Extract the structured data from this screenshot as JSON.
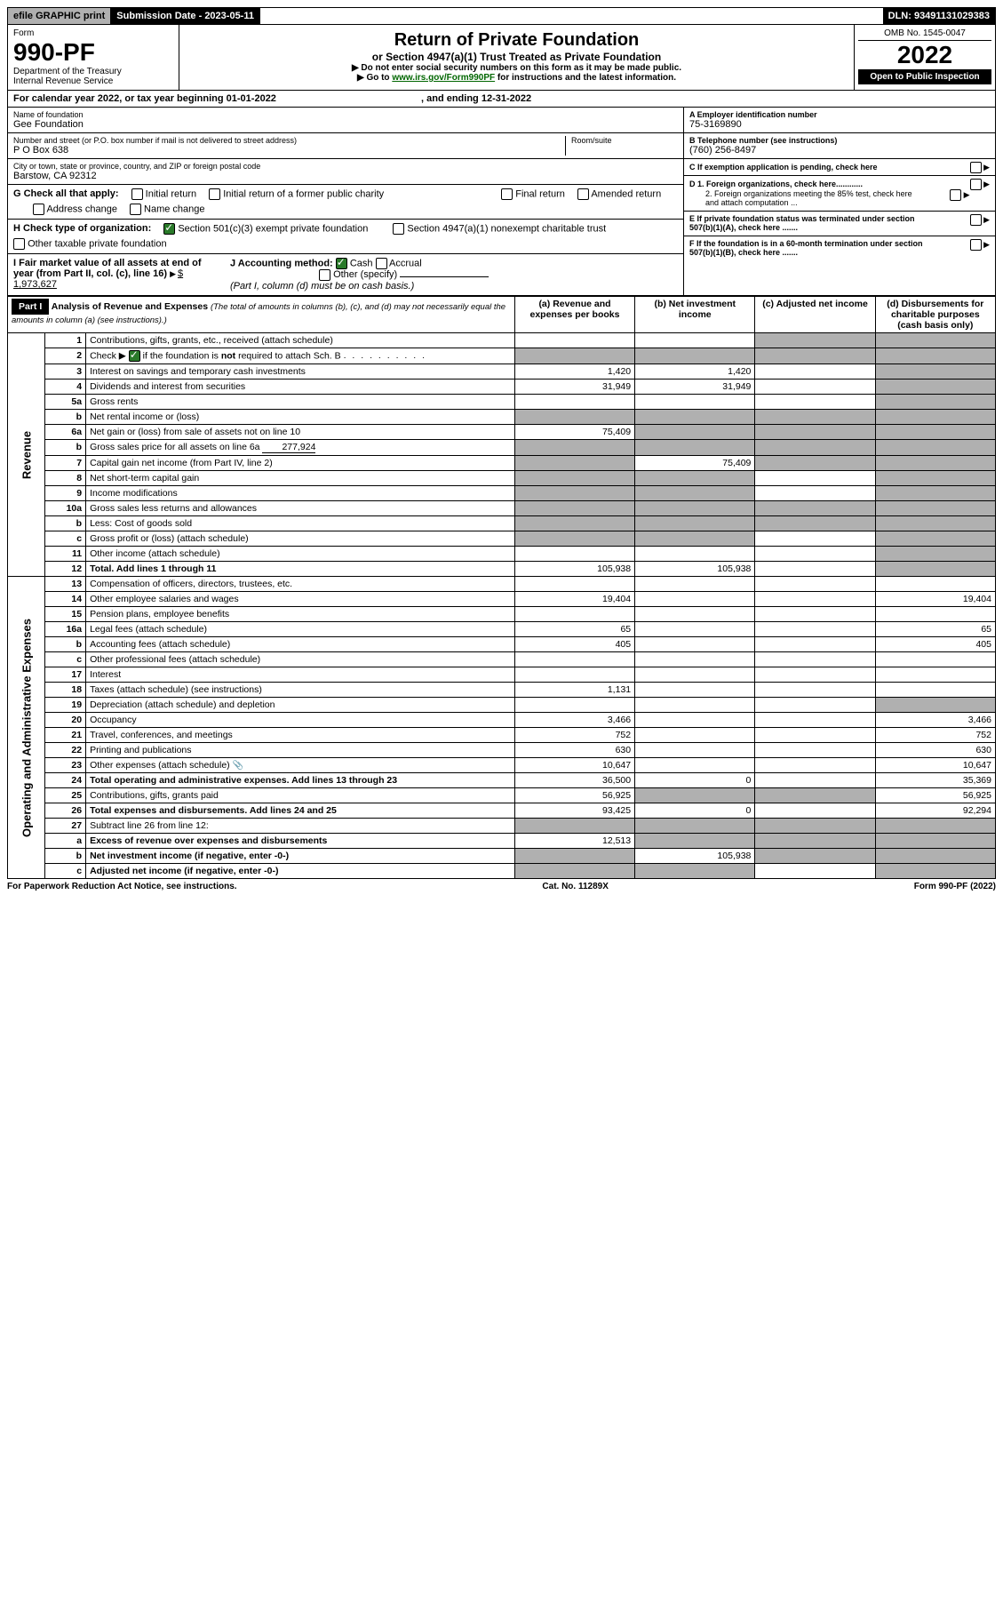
{
  "topbar": {
    "efile": "efile GRAPHIC print",
    "subdate_label": "Submission Date - 2023-05-11",
    "dln": "DLN: 93491131029383"
  },
  "header": {
    "form_word": "Form",
    "form_num": "990-PF",
    "dept": "Department of the Treasury",
    "irs": "Internal Revenue Service",
    "title": "Return of Private Foundation",
    "subtitle": "or Section 4947(a)(1) Trust Treated as Private Foundation",
    "instr1": "▶ Do not enter social security numbers on this form as it may be made public.",
    "instr2_pre": "▶ Go to ",
    "instr2_link": "www.irs.gov/Form990PF",
    "instr2_post": " for instructions and the latest information.",
    "omb": "OMB No. 1545-0047",
    "year": "2022",
    "open": "Open to Public Inspection"
  },
  "calyear": {
    "text_pre": "For calendar year 2022, or tax year beginning ",
    "begin": "01-01-2022",
    "text_mid": " , and ending ",
    "end": "12-31-2022"
  },
  "entity": {
    "name_label": "Name of foundation",
    "name": "Gee Foundation",
    "addr_label": "Number and street (or P.O. box number if mail is not delivered to street address)",
    "addr": "P O Box 638",
    "room_label": "Room/suite",
    "city_label": "City or town, state or province, country, and ZIP or foreign postal code",
    "city": "Barstow, CA  92312",
    "a_label": "A Employer identification number",
    "a_val": "75-3169890",
    "b_label": "B Telephone number (see instructions)",
    "b_val": "(760) 256-8497",
    "c_label": "C If exemption application is pending, check here",
    "d1": "D 1. Foreign organizations, check here............",
    "d2": "2. Foreign organizations meeting the 85% test, check here and attach computation ...",
    "e": "E  If private foundation status was terminated under section 507(b)(1)(A), check here .......",
    "f": "F  If the foundation is in a 60-month termination under section 507(b)(1)(B), check here .......",
    "g_label": "G Check all that apply:",
    "g_opts": [
      "Initial return",
      "Initial return of a former public charity",
      "Final return",
      "Amended return",
      "Address change",
      "Name change"
    ],
    "h_label": "H Check type of organization:",
    "h_opts": [
      "Section 501(c)(3) exempt private foundation",
      "Section 4947(a)(1) nonexempt charitable trust",
      "Other taxable private foundation"
    ],
    "i_label": "I Fair market value of all assets at end of year (from Part II, col. (c), line 16)",
    "i_val": "$  1,973,627",
    "j_label": "J Accounting method:",
    "j_cash": "Cash",
    "j_accrual": "Accrual",
    "j_other": "Other (specify)",
    "j_note": "(Part I, column (d) must be on cash basis.)"
  },
  "part1": {
    "label": "Part I",
    "title": "Analysis of Revenue and Expenses",
    "note": "(The total of amounts in columns (b), (c), and (d) may not necessarily equal the amounts in column (a) (see instructions).)",
    "col_a": "(a)   Revenue and expenses per books",
    "col_b": "(b)   Net investment income",
    "col_c": "(c)   Adjusted net income",
    "col_d": "(d)  Disbursements for charitable purposes (cash basis only)"
  },
  "sides": {
    "rev": "Revenue",
    "exp": "Operating and Administrative Expenses"
  },
  "rows": [
    {
      "n": "1",
      "d": "Contributions, gifts, grants, etc., received (attach schedule)",
      "a": "",
      "b": "",
      "c": "s",
      "ds": "s"
    },
    {
      "n": "2",
      "d": "Check ▶ ☑ if the foundation is not required to attach Sch. B",
      "a": "s",
      "b": "s",
      "c": "s",
      "ds": "s",
      "checked": true,
      "dotsafter": true
    },
    {
      "n": "3",
      "d": "Interest on savings and temporary cash investments",
      "a": "1,420",
      "b": "1,420",
      "c": "",
      "ds": "s"
    },
    {
      "n": "4",
      "d": "Dividends and interest from securities",
      "a": "31,949",
      "b": "31,949",
      "c": "",
      "ds": "s"
    },
    {
      "n": "5a",
      "d": "Gross rents",
      "a": "",
      "b": "",
      "c": "",
      "ds": "s"
    },
    {
      "n": "b",
      "d": "Net rental income or (loss)",
      "a": "s",
      "b": "s",
      "c": "s",
      "ds": "s",
      "sub": true
    },
    {
      "n": "6a",
      "d": "Net gain or (loss) from sale of assets not on line 10",
      "a": "75,409",
      "b": "s",
      "c": "s",
      "ds": "s"
    },
    {
      "n": "b",
      "d": "Gross sales price for all assets on line 6a",
      "a": "s",
      "b": "s",
      "c": "s",
      "ds": "s",
      "sub": true,
      "inline_val": "277,924"
    },
    {
      "n": "7",
      "d": "Capital gain net income (from Part IV, line 2)",
      "a": "s",
      "b": "75,409",
      "c": "s",
      "ds": "s"
    },
    {
      "n": "8",
      "d": "Net short-term capital gain",
      "a": "s",
      "b": "s",
      "c": "",
      "ds": "s"
    },
    {
      "n": "9",
      "d": "Income modifications",
      "a": "s",
      "b": "s",
      "c": "",
      "ds": "s"
    },
    {
      "n": "10a",
      "d": "Gross sales less returns and allowances",
      "a": "s",
      "b": "s",
      "c": "s",
      "ds": "s",
      "sub": true
    },
    {
      "n": "b",
      "d": "Less: Cost of goods sold",
      "a": "s",
      "b": "s",
      "c": "s",
      "ds": "s",
      "sub": true
    },
    {
      "n": "c",
      "d": "Gross profit or (loss) (attach schedule)",
      "a": "s",
      "b": "s",
      "c": "",
      "ds": "s",
      "sub": true
    },
    {
      "n": "11",
      "d": "Other income (attach schedule)",
      "a": "",
      "b": "",
      "c": "",
      "ds": "s"
    },
    {
      "n": "12",
      "d": "Total. Add lines 1 through 11",
      "a": "105,938",
      "b": "105,938",
      "c": "",
      "ds": "s",
      "bold": true
    }
  ],
  "exp_rows": [
    {
      "n": "13",
      "d": "Compensation of officers, directors, trustees, etc.",
      "a": "",
      "b": "",
      "c": "",
      "ds": ""
    },
    {
      "n": "14",
      "d": "Other employee salaries and wages",
      "a": "19,404",
      "b": "",
      "c": "",
      "ds": "19,404"
    },
    {
      "n": "15",
      "d": "Pension plans, employee benefits",
      "a": "",
      "b": "",
      "c": "",
      "ds": ""
    },
    {
      "n": "16a",
      "d": "Legal fees (attach schedule)",
      "a": "65",
      "b": "",
      "c": "",
      "ds": "65"
    },
    {
      "n": "b",
      "d": "Accounting fees (attach schedule)",
      "a": "405",
      "b": "",
      "c": "",
      "ds": "405",
      "sub": true
    },
    {
      "n": "c",
      "d": "Other professional fees (attach schedule)",
      "a": "",
      "b": "",
      "c": "",
      "ds": "",
      "sub": true
    },
    {
      "n": "17",
      "d": "Interest",
      "a": "",
      "b": "",
      "c": "",
      "ds": ""
    },
    {
      "n": "18",
      "d": "Taxes (attach schedule) (see instructions)",
      "a": "1,131",
      "b": "",
      "c": "",
      "ds": ""
    },
    {
      "n": "19",
      "d": "Depreciation (attach schedule) and depletion",
      "a": "",
      "b": "",
      "c": "",
      "ds": "s"
    },
    {
      "n": "20",
      "d": "Occupancy",
      "a": "3,466",
      "b": "",
      "c": "",
      "ds": "3,466"
    },
    {
      "n": "21",
      "d": "Travel, conferences, and meetings",
      "a": "752",
      "b": "",
      "c": "",
      "ds": "752"
    },
    {
      "n": "22",
      "d": "Printing and publications",
      "a": "630",
      "b": "",
      "c": "",
      "ds": "630"
    },
    {
      "n": "23",
      "d": "Other expenses (attach schedule)",
      "a": "10,647",
      "b": "",
      "c": "",
      "ds": "10,647",
      "icon": true
    },
    {
      "n": "24",
      "d": "Total operating and administrative expenses. Add lines 13 through 23",
      "a": "36,500",
      "b": "0",
      "c": "",
      "ds": "35,369",
      "bold": true
    },
    {
      "n": "25",
      "d": "Contributions, gifts, grants paid",
      "a": "56,925",
      "b": "s",
      "c": "s",
      "ds": "56,925"
    },
    {
      "n": "26",
      "d": "Total expenses and disbursements. Add lines 24 and 25",
      "a": "93,425",
      "b": "0",
      "c": "",
      "ds": "92,294",
      "bold": true
    },
    {
      "n": "27",
      "d": "Subtract line 26 from line 12:",
      "a": "s",
      "b": "s",
      "c": "s",
      "ds": "s"
    },
    {
      "n": "a",
      "d": "Excess of revenue over expenses and disbursements",
      "a": "12,513",
      "b": "s",
      "c": "s",
      "ds": "s",
      "bold": true,
      "sub": true
    },
    {
      "n": "b",
      "d": "Net investment income (if negative, enter -0-)",
      "a": "s",
      "b": "105,938",
      "c": "s",
      "ds": "s",
      "bold": true,
      "sub": true
    },
    {
      "n": "c",
      "d": "Adjusted net income (if negative, enter -0-)",
      "a": "s",
      "b": "s",
      "c": "",
      "ds": "s",
      "bold": true,
      "sub": true
    }
  ],
  "footer": {
    "left": "For Paperwork Reduction Act Notice, see instructions.",
    "mid": "Cat. No. 11289X",
    "right": "Form 990-PF (2022)"
  }
}
